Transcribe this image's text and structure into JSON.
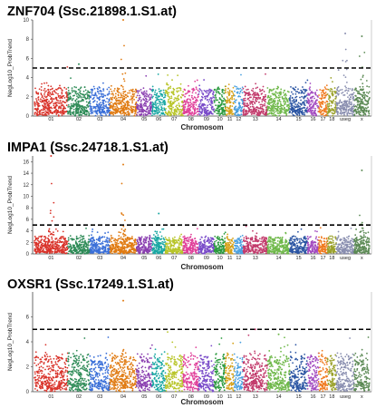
{
  "chart_data": [
    {
      "type": "scatter",
      "title": "ZNF704 (Ssc.21898.1.S1.at)",
      "ylabel": "NegLog10_ProbTrend",
      "xlabel": "Chromosom",
      "ylim": [
        0,
        10
      ],
      "yticks": [
        0,
        2,
        4,
        6,
        8,
        10
      ],
      "threshold": 5,
      "categories": [
        "01",
        "02",
        "03",
        "04",
        "05",
        "06",
        "07",
        "08",
        "09",
        "10",
        "11",
        "12",
        "13",
        "14",
        "15",
        "16",
        "17",
        "18",
        "useg",
        "x"
      ],
      "peaks": [
        {
          "chr": "04",
          "value": 10.0
        },
        {
          "chr": "02",
          "value": 5.4
        },
        {
          "chr": "x",
          "value": 8.3
        },
        {
          "chr": "useg",
          "value": 8.6
        }
      ]
    },
    {
      "type": "scatter",
      "title": "IMPA1 (Ssc.24718.1.S1.at)",
      "ylabel": "NegLog10_ProbTrend",
      "xlabel": "Chromosom",
      "ylim": [
        0,
        17
      ],
      "yticks": [
        0,
        2,
        4,
        6,
        8,
        10,
        12,
        14,
        16
      ],
      "threshold": 5,
      "categories": [
        "01",
        "02",
        "03",
        "04",
        "05",
        "06",
        "07",
        "08",
        "09",
        "10",
        "11",
        "12",
        "13",
        "14",
        "15",
        "16",
        "17",
        "18",
        "useg",
        "x"
      ],
      "peaks": [
        {
          "chr": "04",
          "value": 15.5
        },
        {
          "chr": "01",
          "value": 17.0
        },
        {
          "chr": "x",
          "value": 14.5
        },
        {
          "chr": "06",
          "value": 7.0
        }
      ]
    },
    {
      "type": "scatter",
      "title": "OXSR1 (Ssc.17249.1.S1.at)",
      "ylabel": "NegLog10_ProbTrend",
      "xlabel": "Chromosom",
      "ylim": [
        0,
        8
      ],
      "yticks": [
        0,
        2,
        4,
        6
      ],
      "threshold": 5,
      "categories": [
        "01",
        "02",
        "03",
        "04",
        "05",
        "06",
        "07",
        "08",
        "09",
        "10",
        "11",
        "12",
        "13",
        "14",
        "15",
        "16",
        "17",
        "18",
        "useg",
        "x"
      ],
      "peaks": [
        {
          "chr": "04",
          "value": 7.3
        },
        {
          "chr": "13",
          "value": 5.0
        },
        {
          "chr": "14",
          "value": 4.6
        }
      ]
    }
  ]
}
